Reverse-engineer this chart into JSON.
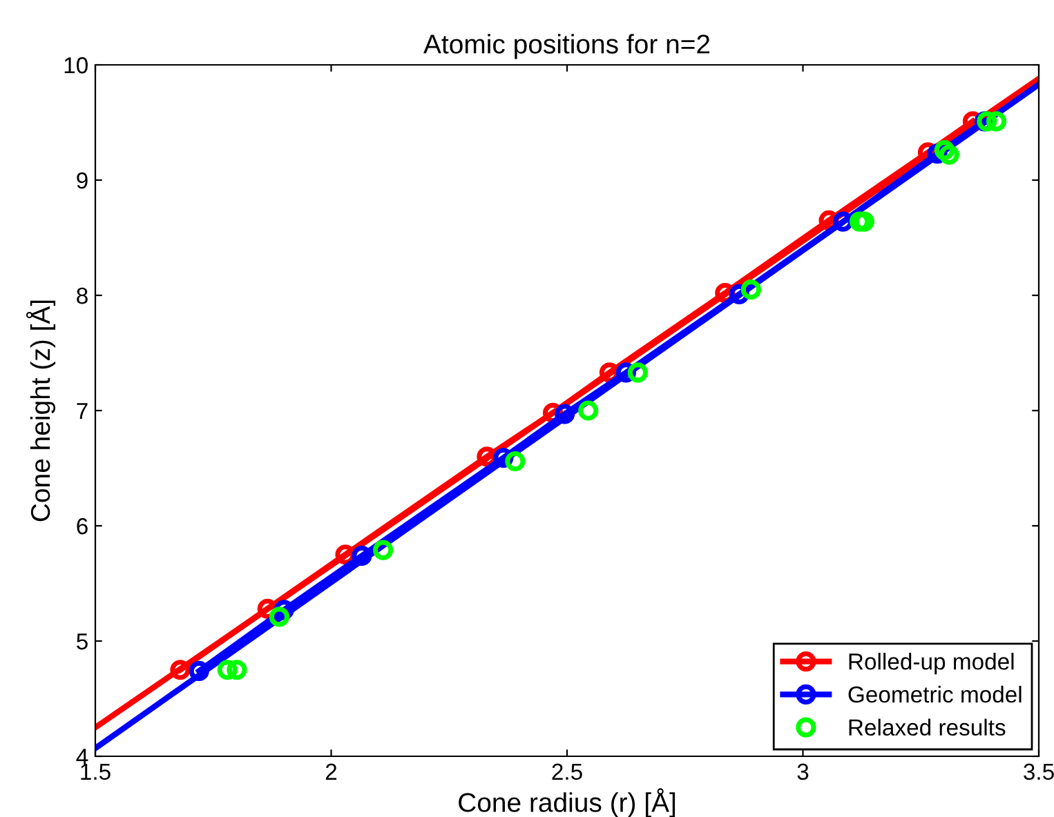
{
  "chart_data": {
    "type": "line",
    "title": "Atomic positions for n=2",
    "xlabel": "Cone radius (r) [Å]",
    "ylabel": "Cone height (z) [Å]",
    "xlim": [
      1.5,
      3.5
    ],
    "ylim": [
      4,
      10
    ],
    "xticks": [
      1.5,
      2,
      2.5,
      3,
      3.5
    ],
    "yticks": [
      4,
      5,
      6,
      7,
      8,
      9,
      10
    ],
    "grid": false,
    "legend": "bottom right",
    "series": [
      {
        "color": "#ff0000",
        "marker": "none",
        "x": [
          1.5,
          3.5
        ],
        "values": [
          4.25,
          9.88
        ]
      },
      {
        "color": "#0000ff",
        "marker": "none",
        "x": [
          1.5,
          3.5
        ],
        "values": [
          4.07,
          9.83
        ]
      },
      {
        "name": "Rolled-up model",
        "color": "#ff0000",
        "marker": "circle",
        "x": [
          1.68,
          1.865,
          2.03,
          2.33,
          2.47,
          2.59,
          2.835,
          3.055,
          3.265,
          3.36
        ],
        "values": [
          4.75,
          5.28,
          5.75,
          6.6,
          6.98,
          7.33,
          8.02,
          8.65,
          9.24,
          9.51
        ]
      },
      {
        "name": "Geometric model",
        "color": "#0000ff",
        "marker": "circle",
        "x": [
          1.72,
          1.9,
          2.065,
          2.365,
          2.495,
          2.625,
          2.865,
          3.085,
          3.285,
          3.385
        ],
        "values": [
          4.74,
          5.27,
          5.74,
          6.59,
          6.97,
          7.33,
          8.01,
          8.64,
          9.23,
          9.51
        ]
      },
      {
        "name": "Relaxed results",
        "type": "scatter",
        "color": "#00ff00",
        "marker": "circle",
        "x": [
          1.78,
          1.8,
          1.89,
          2.11,
          2.39,
          2.545,
          2.65,
          2.89,
          3.12,
          3.13,
          3.3,
          3.31,
          3.39,
          3.41
        ],
        "values": [
          4.75,
          4.75,
          5.21,
          5.79,
          6.56,
          7.0,
          7.33,
          8.05,
          8.64,
          8.64,
          9.26,
          9.22,
          9.51,
          9.51
        ]
      }
    ]
  }
}
